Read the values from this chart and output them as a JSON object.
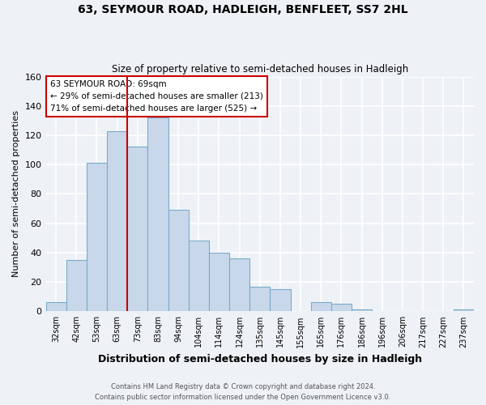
{
  "title": "63, SEYMOUR ROAD, HADLEIGH, BENFLEET, SS7 2HL",
  "subtitle": "Size of property relative to semi-detached houses in Hadleigh",
  "xlabel": "Distribution of semi-detached houses by size in Hadleigh",
  "ylabel": "Number of semi-detached properties",
  "bin_labels": [
    "32sqm",
    "42sqm",
    "53sqm",
    "63sqm",
    "73sqm",
    "83sqm",
    "94sqm",
    "104sqm",
    "114sqm",
    "124sqm",
    "135sqm",
    "145sqm",
    "155sqm",
    "165sqm",
    "176sqm",
    "186sqm",
    "196sqm",
    "206sqm",
    "217sqm",
    "227sqm",
    "237sqm"
  ],
  "bar_heights": [
    6,
    35,
    101,
    123,
    112,
    132,
    69,
    48,
    40,
    36,
    17,
    15,
    0,
    6,
    5,
    1,
    0,
    0,
    0,
    0,
    1
  ],
  "bar_color": "#c8d8ea",
  "bar_edge_color": "#7aaac8",
  "vline_color": "#cc0000",
  "vline_x_index": 4,
  "annotation_title": "63 SEYMOUR ROAD: 69sqm",
  "annotation_line1": "← 29% of semi-detached houses are smaller (213)",
  "annotation_line2": "71% of semi-detached houses are larger (525) →",
  "annotation_box_color": "#cc0000",
  "ylim": [
    0,
    160
  ],
  "yticks": [
    0,
    20,
    40,
    60,
    80,
    100,
    120,
    140,
    160
  ],
  "footer1": "Contains HM Land Registry data © Crown copyright and database right 2024.",
  "footer2": "Contains public sector information licensed under the Open Government Licence v3.0.",
  "background_color": "#eef2f6",
  "grid_color": "#ffffff"
}
